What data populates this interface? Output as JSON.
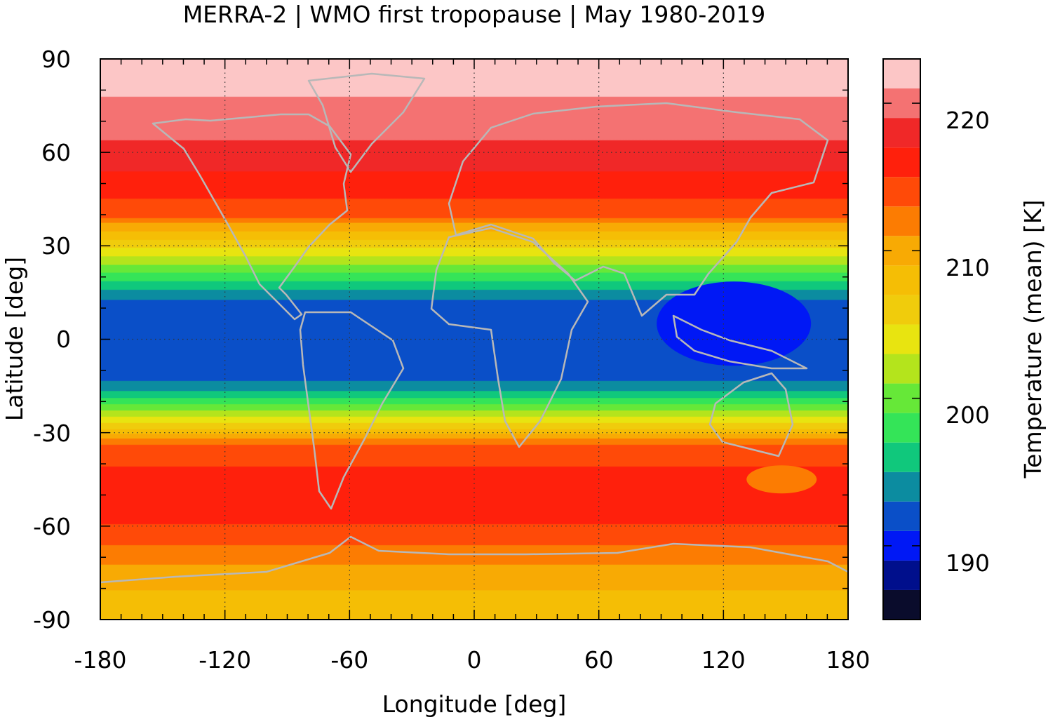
{
  "chart_data": {
    "type": "heatmap",
    "title": "MERRA-2 | WMO first tropopause | May 1980-2019",
    "xlabel": "Longitude [deg]",
    "ylabel": "Latitude [deg]",
    "colorbar_label": "Temperature (mean) [K]",
    "xlim": [
      -180,
      180
    ],
    "ylim": [
      -90,
      90
    ],
    "xticks": [
      -180,
      -120,
      -60,
      0,
      60,
      120,
      180
    ],
    "yticks": [
      90,
      60,
      30,
      0,
      -30,
      -60,
      -90
    ],
    "xtick_labels": [
      "-180",
      "-120",
      "-60",
      "0",
      "60",
      "120",
      "180"
    ],
    "ytick_labels": [
      "90",
      "60",
      "30",
      "0",
      "-30",
      "-60",
      "-90"
    ],
    "grid": true,
    "colorbar": {
      "range": [
        185,
        223
      ],
      "ticks": [
        190,
        200,
        210,
        220
      ],
      "tick_labels": [
        "190",
        "200",
        "210",
        "220"
      ],
      "levels": [
        {
          "from": 185,
          "to": 187,
          "color": "#0a0c2c"
        },
        {
          "from": 187,
          "to": 189,
          "color": "#000f8c"
        },
        {
          "from": 189,
          "to": 191,
          "color": "#0018f5"
        },
        {
          "from": 191,
          "to": 193,
          "color": "#0a4fc8"
        },
        {
          "from": 193,
          "to": 195,
          "color": "#0c8ca0"
        },
        {
          "from": 195,
          "to": 197,
          "color": "#10c87c"
        },
        {
          "from": 197,
          "to": 199,
          "color": "#34e458"
        },
        {
          "from": 199,
          "to": 201,
          "color": "#66e838"
        },
        {
          "from": 201,
          "to": 203,
          "color": "#b4e41c"
        },
        {
          "from": 203,
          "to": 205,
          "color": "#e8e410"
        },
        {
          "from": 205,
          "to": 207,
          "color": "#f0cc0c"
        },
        {
          "from": 207,
          "to": 209,
          "color": "#f5be05"
        },
        {
          "from": 209,
          "to": 211,
          "color": "#f8aa04"
        },
        {
          "from": 211,
          "to": 213,
          "color": "#fc7c02"
        },
        {
          "from": 213,
          "to": 215,
          "color": "#ff4a08"
        },
        {
          "from": 215,
          "to": 217,
          "color": "#ff200c"
        },
        {
          "from": 217,
          "to": 219,
          "color": "#f02828"
        },
        {
          "from": 219,
          "to": 221,
          "color": "#f47272"
        },
        {
          "from": 221,
          "to": 223,
          "color": "#fcc6c6"
        }
      ]
    },
    "zonal_mean_profile": {
      "lat": [
        90,
        84,
        80,
        76,
        70,
        64,
        60,
        56,
        52,
        48,
        44,
        40,
        38,
        36,
        34,
        32,
        30,
        28,
        26,
        24,
        22,
        20,
        18,
        16,
        14,
        12,
        10,
        5,
        0,
        -5,
        -10,
        -12,
        -14,
        -16,
        -18,
        -20,
        -22,
        -24,
        -26,
        -28,
        -30,
        -32,
        -34,
        -38,
        -44,
        -50,
        -56,
        -62,
        -66,
        -70,
        -74,
        -78,
        -82,
        -86,
        -90
      ],
      "temperature": [
        222,
        222,
        221.5,
        220.5,
        219.5,
        219,
        218.5,
        217.5,
        216.5,
        215.5,
        214.8,
        214.5,
        211.5,
        210,
        208.5,
        207,
        205.5,
        204,
        202.5,
        201,
        199.5,
        198,
        196.5,
        195,
        193.5,
        192.8,
        192.5,
        192.2,
        192,
        192,
        192,
        192.5,
        193.2,
        194.5,
        196,
        198,
        200,
        202,
        204,
        206,
        208.5,
        211,
        213,
        214.5,
        215.5,
        215.8,
        215.5,
        214.6,
        213,
        211.8,
        210.5,
        209.5,
        208.7,
        208.4,
        208.3
      ]
    },
    "regional_features": [
      {
        "description": "cold pool over Maritime Continent",
        "lon_center": 125,
        "lat_center": 5,
        "temperature": 190
      },
      {
        "description": "warm patch south of Australia",
        "lon_center": 148,
        "lat_center": -45,
        "temperature": 212
      }
    ]
  }
}
